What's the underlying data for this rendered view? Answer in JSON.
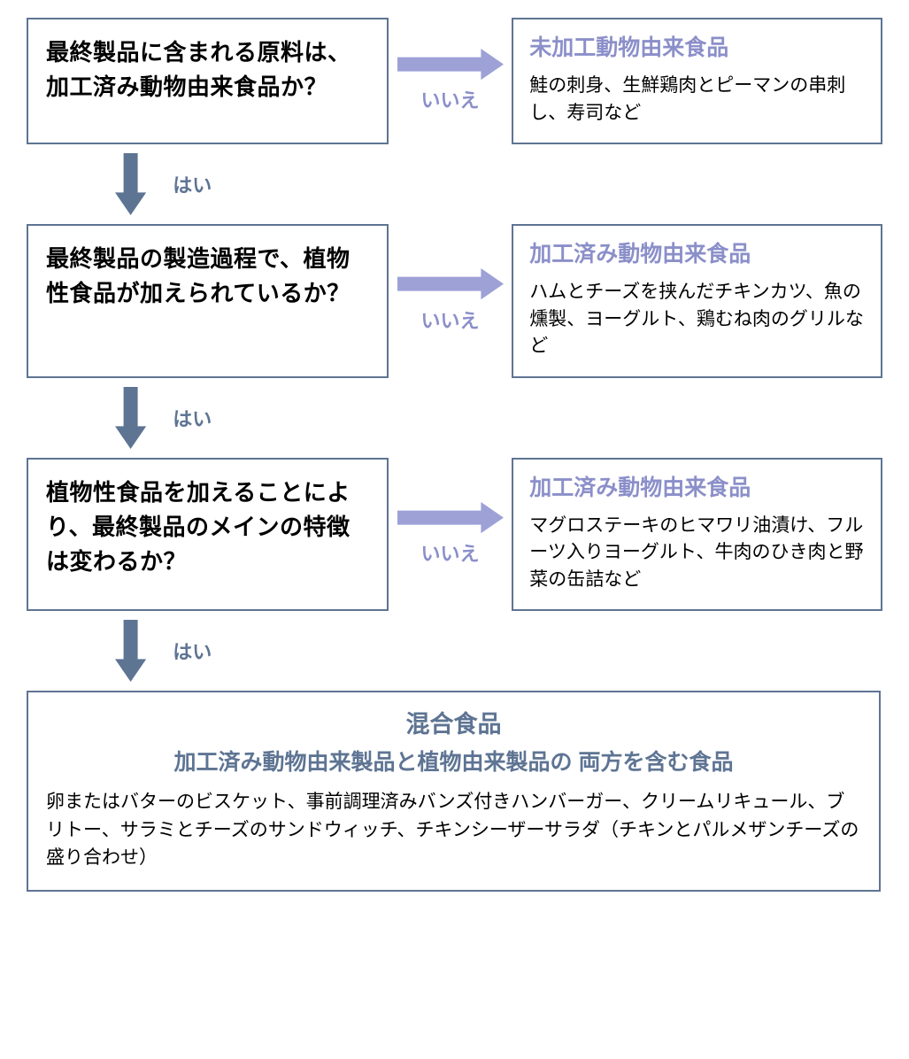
{
  "colors": {
    "question_border": "#5e7493",
    "question_text": "#000000",
    "result_border": "#5e7493",
    "result_title": "#8b8fc9",
    "result_desc": "#000000",
    "compound_title": "#5e7493",
    "arrow_h": "#9da1d6",
    "arrow_v": "#5e7493",
    "label_h": "#8b8fc9",
    "label_v": "#5e7493",
    "bg": "#ffffff"
  },
  "fonts": {
    "question_size": 26,
    "result_title_size": 25,
    "result_desc_size": 21,
    "compound_title_size": 27,
    "compound_subtitle_size": 25,
    "compound_desc_size": 21,
    "label_size": 22
  },
  "layout": {
    "question_width": 410,
    "result_width": 420,
    "h_arrow_zone_width": 140,
    "h_arrow_len": 120,
    "h_arrow_thick": 16,
    "v_arrow_height": 90,
    "v_arrow_len": 70,
    "v_arrow_thick": 16,
    "compound_width": 965
  },
  "labels": {
    "yes": "はい",
    "no": "いいえ"
  },
  "q1": {
    "text": "最終製品に含まれる原料は、加工済み動物由来食品か？"
  },
  "r1": {
    "title": "未加工動物由来食品",
    "desc": "鮭の刺身、生鮮鶏肉とピーマンの串刺し、寿司など"
  },
  "q2": {
    "text": "最終製品の製造過程で、植物性食品が加えられているか？"
  },
  "r2": {
    "title": "加工済み動物由来食品",
    "desc": "ハムとチーズを挟んだチキンカツ、魚の燻製、ヨーグルト、鶏むね肉のグリルなど"
  },
  "q3": {
    "text": "植物性食品を加えることにより、最終製品のメインの特徴は変わるか？"
  },
  "r3": {
    "title": "加工済み動物由来食品",
    "desc": "マグロステーキのヒマワリ油漬け、フルーツ入りヨーグルト、牛肉のひき肉と野菜の缶詰など"
  },
  "compound": {
    "title": "混合食品",
    "subtitle": "加工済み動物由来製品と植物由来製品の 両方を含む食品",
    "desc": "卵またはバターのビスケット、事前調理済みバンズ付きハンバーガー、クリームリキュール、ブリトー、サラミとチーズのサンドウィッチ、チキンシーザーサラダ（チキンとパルメザンチーズの盛り合わせ）"
  }
}
